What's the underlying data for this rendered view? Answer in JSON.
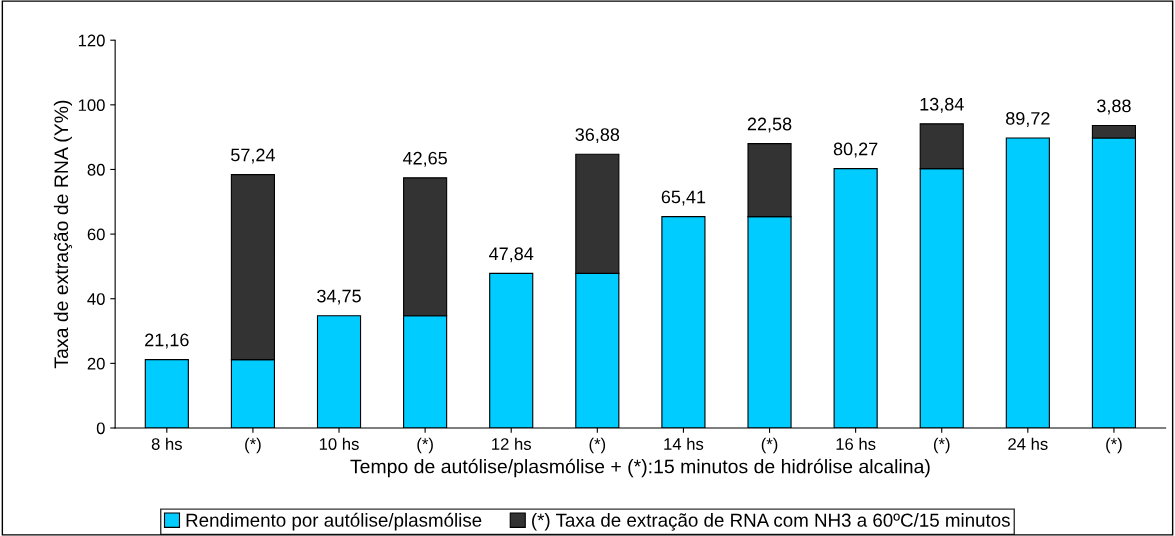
{
  "chart_data": {
    "type": "bar",
    "stacked": true,
    "xlabel": "Tempo de autólise/plasmólise + (*):15 minutos de hidrólise alcalina)",
    "ylabel": "Taxa de extração de RNA (Y%)",
    "categories": [
      "8 hs",
      "(*)",
      "10 hs",
      "(*)",
      "12 hs",
      "(*)",
      "14 hs",
      "(*)",
      "16 hs",
      "(*)",
      "24 hs",
      "(*)"
    ],
    "series": [
      {
        "name": "Rendimento por autólise/plasmólise",
        "color": "#00ccff",
        "values": [
          21.16,
          21.16,
          34.75,
          34.75,
          47.84,
          47.84,
          65.41,
          65.41,
          80.27,
          80.27,
          89.72,
          89.72
        ],
        "value_labels": [
          "21,16",
          null,
          "34,75",
          null,
          "47,84",
          null,
          "65,41",
          null,
          "80,27",
          null,
          "89,72",
          null
        ]
      },
      {
        "name": "(*) Taxa de extração de RNA com NH3 a 60ºC/15 minutos",
        "color": "#333333",
        "values": [
          null,
          57.24,
          null,
          42.65,
          null,
          36.88,
          null,
          22.58,
          null,
          13.84,
          null,
          3.88
        ],
        "value_labels": [
          null,
          "57,24",
          null,
          "42,65",
          null,
          "36,88",
          null,
          "22,58",
          null,
          "13,84",
          null,
          "3,88"
        ]
      }
    ],
    "ylim": [
      0,
      120
    ],
    "yticks": [
      0,
      20,
      40,
      60,
      80,
      100,
      120
    ],
    "grid": false,
    "legend": "bottom"
  }
}
